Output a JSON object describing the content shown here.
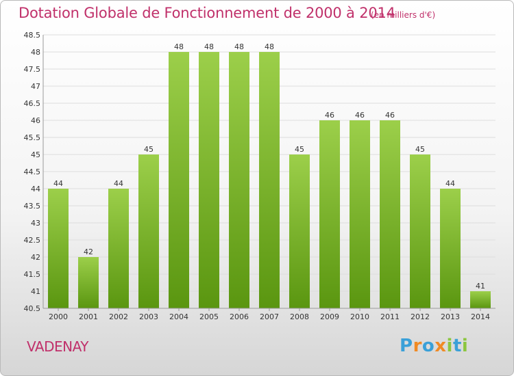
{
  "header": {
    "title": "Dotation Globale de Fonctionnement de 2000 à 2014",
    "unit": "(en milliers d'€)"
  },
  "footer": {
    "town": "VADENAY",
    "logo_letters": [
      "P",
      "r",
      "o",
      "x",
      "i",
      "t",
      "i"
    ],
    "logo_colors": [
      "#3aa0d8",
      "#f08a24",
      "#3aa0d8",
      "#f08a24",
      "#8cc63f",
      "#3aa0d8",
      "#8cc63f"
    ]
  },
  "colors": {
    "bar_top": "#9ccf4a",
    "bar_bottom": "#5a9610",
    "grid": "#dddddd",
    "text": "#333333",
    "accent": "#c0306a"
  },
  "chart_data": {
    "type": "bar",
    "title": "Dotation Globale de Fonctionnement de 2000 à 2014",
    "subtitle": "(en milliers d'€)",
    "categories": [
      "2000",
      "2001",
      "2002",
      "2003",
      "2004",
      "2005",
      "2006",
      "2007",
      "2008",
      "2009",
      "2010",
      "2011",
      "2012",
      "2013",
      "2014"
    ],
    "values": [
      44,
      42,
      44,
      45,
      48,
      48,
      48,
      48,
      45,
      46,
      46,
      46,
      45,
      44,
      41
    ],
    "value_labels": [
      "44",
      "42",
      "44",
      "45",
      "48",
      "48",
      "48",
      "48",
      "45",
      "46",
      "46",
      "46",
      "45",
      "44",
      "41"
    ],
    "ylim": [
      40.5,
      48.5
    ],
    "yticks": [
      "40.5",
      "41",
      "41.5",
      "42",
      "42.5",
      "43",
      "43.5",
      "44",
      "44.5",
      "45",
      "45.5",
      "46",
      "46.5",
      "47",
      "47.5",
      "48",
      "48.5"
    ],
    "grid": true,
    "legend": "none"
  }
}
